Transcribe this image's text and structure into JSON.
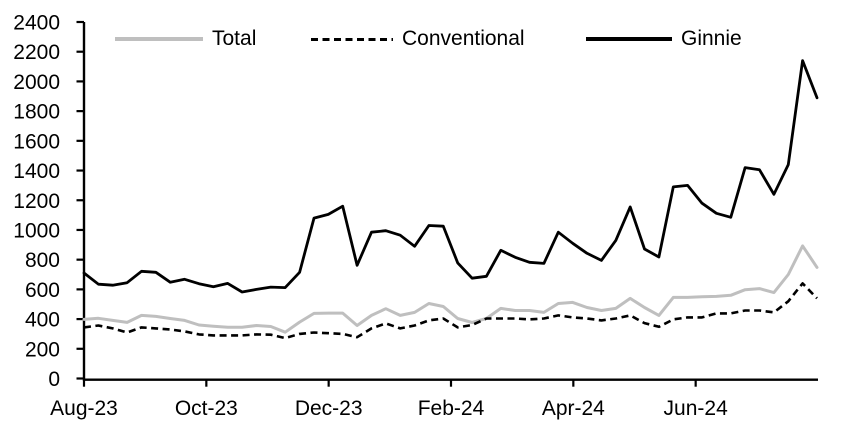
{
  "chart_data": {
    "type": "line",
    "title": "",
    "grid": false,
    "legend_position": "top",
    "x_axis": {
      "tick_labels": [
        "Aug-23",
        "Oct-23",
        "Dec-23",
        "Feb-24",
        "Apr-24",
        "Jun-24"
      ],
      "tick_month_positions": [
        0,
        2,
        4,
        6,
        8,
        10
      ],
      "months_span": 12,
      "frequency": "weekly",
      "range_note": "weekly observations Aug-23 through Aug-24"
    },
    "y_axis": {
      "ticks": [
        0,
        200,
        400,
        600,
        800,
        1000,
        1200,
        1400,
        1600,
        1800,
        2000,
        2200,
        2400
      ],
      "ylim": [
        0,
        2400
      ]
    },
    "axis_color": "#000000",
    "series": [
      {
        "name": "Total",
        "color": "#BFBFBF",
        "line_style": "solid",
        "stroke_width": 3,
        "values": [
          398,
          405,
          391,
          378,
          425,
          418,
          404,
          391,
          360,
          352,
          345,
          345,
          357,
          350,
          312,
          380,
          438,
          440,
          440,
          357,
          425,
          470,
          425,
          445,
          505,
          485,
          404,
          377,
          404,
          472,
          458,
          458,
          445,
          505,
          512,
          478,
          458,
          472,
          539,
          478,
          425,
          546,
          546,
          550,
          553,
          560,
          598,
          605,
          578,
          700,
          893,
          748
        ]
      },
      {
        "name": "Conventional",
        "color": "#000000",
        "line_style": "dashed",
        "stroke_width": 2.6,
        "values": [
          344,
          357,
          337,
          310,
          344,
          337,
          330,
          317,
          297,
          290,
          290,
          290,
          297,
          295,
          272,
          300,
          310,
          305,
          300,
          278,
          337,
          371,
          337,
          357,
          391,
          404,
          344,
          360,
          404,
          404,
          404,
          398,
          404,
          425,
          411,
          404,
          391,
          404,
          425,
          373,
          348,
          398,
          411,
          411,
          438,
          438,
          458,
          458,
          445,
          520,
          640,
          540
        ]
      },
      {
        "name": "Ginnie",
        "color": "#000000",
        "line_style": "solid",
        "stroke_width": 2.8,
        "values": [
          710,
          635,
          628,
          645,
          722,
          715,
          648,
          668,
          638,
          618,
          640,
          582,
          600,
          615,
          612,
          715,
          1080,
          1105,
          1160,
          762,
          985,
          995,
          965,
          890,
          1030,
          1025,
          778,
          675,
          688,
          863,
          816,
          782,
          775,
          985,
          910,
          843,
          795,
          930,
          1155,
          872,
          818,
          1290,
          1300,
          1180,
          1112,
          1085,
          1420,
          1405,
          1240,
          1440,
          2140,
          1890
        ]
      }
    ]
  }
}
